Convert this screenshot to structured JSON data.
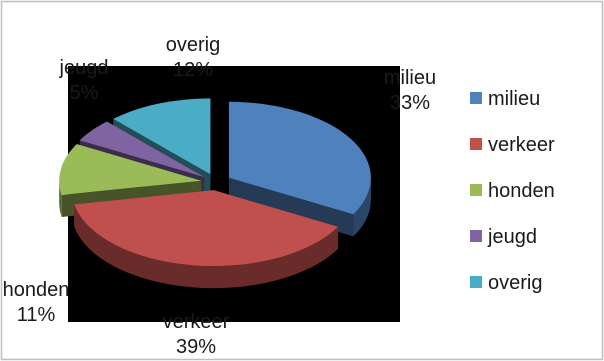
{
  "chart_data": {
    "type": "pie",
    "style": "3d-exploded",
    "categories": [
      "milieu",
      "verkeer",
      "honden",
      "jeugd",
      "overig"
    ],
    "values": [
      33,
      39,
      11,
      5,
      12
    ],
    "percent_labels": [
      "33%",
      "39%",
      "11%",
      "5%",
      "12%"
    ],
    "colors": {
      "milieu": "#4f81bd",
      "verkeer": "#c0504d",
      "honden": "#9bbb59",
      "jeugd": "#8064a2",
      "overig": "#4bacc6"
    },
    "plot_background": "#000000",
    "legend_position": "right"
  }
}
